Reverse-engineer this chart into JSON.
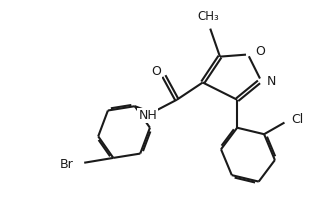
{
  "bg_color": "#ffffff",
  "line_color": "#1a1a1a",
  "line_width": 1.5,
  "font_size": 9,
  "figsize": [
    3.3,
    2.21
  ],
  "dpi": 100,
  "xlim": [
    -2.0,
    10.5
  ],
  "ylim": [
    -0.5,
    9.5
  ]
}
